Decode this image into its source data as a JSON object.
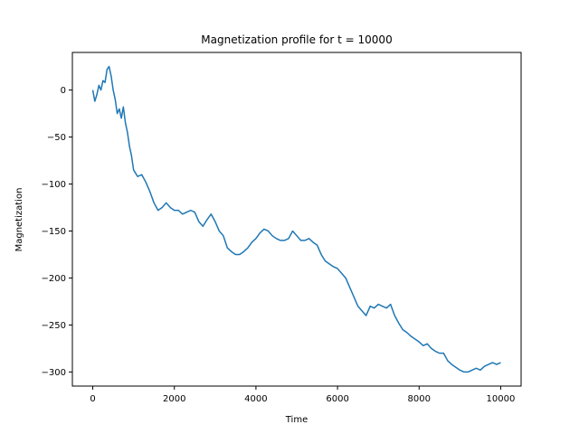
{
  "chart_data": {
    "type": "line",
    "title": "Magnetization profile for t = 10000",
    "xlabel": "Time",
    "ylabel": "Magnetization",
    "xlim": [
      -500,
      10500
    ],
    "ylim": [
      -315,
      40
    ],
    "xticks": [
      0,
      2000,
      4000,
      6000,
      8000,
      10000
    ],
    "yticks": [
      0,
      -50,
      -100,
      -150,
      -200,
      -250,
      -300
    ],
    "xtick_labels": [
      "0",
      "2000",
      "4000",
      "6000",
      "8000",
      "10000"
    ],
    "ytick_labels": [
      "0",
      "−50",
      "−100",
      "−150",
      "−200",
      "−250",
      "−300"
    ],
    "grid": false,
    "series": [
      {
        "color": "#1f77b4",
        "x": [
          0,
          50,
          100,
          150,
          200,
          250,
          300,
          350,
          400,
          450,
          500,
          550,
          600,
          650,
          700,
          750,
          800,
          850,
          900,
          950,
          1000,
          1100,
          1200,
          1300,
          1400,
          1500,
          1600,
          1700,
          1800,
          1900,
          2000,
          2100,
          2200,
          2300,
          2400,
          2500,
          2600,
          2700,
          2800,
          2900,
          3000,
          3100,
          3200,
          3300,
          3400,
          3500,
          3600,
          3700,
          3800,
          3900,
          4000,
          4100,
          4200,
          4300,
          4400,
          4500,
          4600,
          4700,
          4800,
          4900,
          5000,
          5100,
          5200,
          5300,
          5400,
          5500,
          5600,
          5700,
          5800,
          5900,
          6000,
          6100,
          6200,
          6300,
          6400,
          6500,
          6600,
          6700,
          6800,
          6900,
          7000,
          7100,
          7200,
          7300,
          7400,
          7500,
          7600,
          7700,
          7800,
          7900,
          8000,
          8100,
          8200,
          8300,
          8400,
          8500,
          8600,
          8700,
          8800,
          8900,
          9000,
          9100,
          9200,
          9300,
          9400,
          9500,
          9600,
          9700,
          9800,
          9900,
          10000
        ],
        "y": [
          0,
          -12,
          -5,
          5,
          0,
          10,
          8,
          22,
          25,
          15,
          0,
          -10,
          -25,
          -20,
          -30,
          -18,
          -35,
          -45,
          -60,
          -70,
          -85,
          -92,
          -90,
          -98,
          -108,
          -120,
          -128,
          -125,
          -120,
          -125,
          -128,
          -128,
          -132,
          -130,
          -128,
          -130,
          -140,
          -145,
          -138,
          -132,
          -140,
          -150,
          -155,
          -168,
          -172,
          -175,
          -175,
          -172,
          -168,
          -162,
          -158,
          -152,
          -148,
          -150,
          -155,
          -158,
          -160,
          -160,
          -158,
          -150,
          -155,
          -160,
          -160,
          -158,
          -162,
          -165,
          -175,
          -182,
          -185,
          -188,
          -190,
          -195,
          -200,
          -210,
          -220,
          -230,
          -235,
          -240,
          -230,
          -232,
          -228,
          -230,
          -232,
          -228,
          -240,
          -248,
          -255,
          -258,
          -262,
          -265,
          -268,
          -272,
          -270,
          -275,
          -278,
          -280,
          -280,
          -288,
          -292,
          -295,
          -298,
          -300,
          -300,
          -298,
          -296,
          -298,
          -294,
          -292,
          -290,
          -292,
          -290
        ]
      }
    ]
  }
}
